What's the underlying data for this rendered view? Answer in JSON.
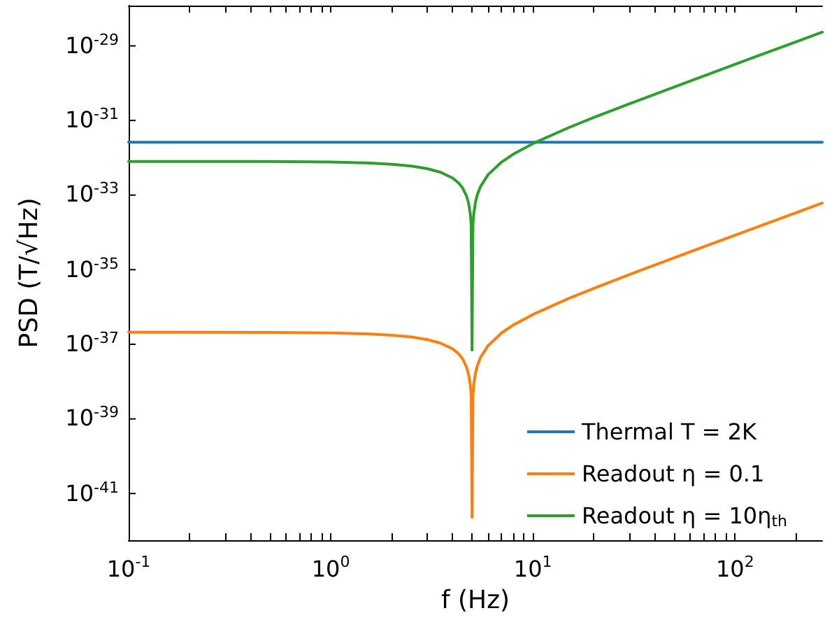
{
  "chart_data": {
    "type": "line",
    "xlabel": "f (Hz)",
    "ylabel": "PSD (T/√Hz)",
    "log": "xy",
    "grid": false,
    "legend": "bottom right",
    "marker": "none",
    "line_style": "solid",
    "xlim": [
      0.1,
      270
    ],
    "ylim": [
      5.6e-43,
      1.2e-28
    ],
    "xticks": [
      {
        "value": 0.1,
        "label": "10$^{-1}$"
      },
      {
        "value": 0.2,
        "label": null
      },
      {
        "value": 0.3,
        "label": null
      },
      {
        "value": 0.4,
        "label": null
      },
      {
        "value": 0.5,
        "label": null
      },
      {
        "value": 0.6,
        "label": null
      },
      {
        "value": 0.7,
        "label": null
      },
      {
        "value": 0.8,
        "label": null
      },
      {
        "value": 0.9,
        "label": null
      },
      {
        "value": 1,
        "label": "10$^{0}$"
      },
      {
        "value": 2,
        "label": null
      },
      {
        "value": 3,
        "label": null
      },
      {
        "value": 4,
        "label": null
      },
      {
        "value": 5,
        "label": null
      },
      {
        "value": 6,
        "label": null
      },
      {
        "value": 7,
        "label": null
      },
      {
        "value": 8,
        "label": null
      },
      {
        "value": 9,
        "label": null
      },
      {
        "value": 10,
        "label": "10$^{1}$"
      },
      {
        "value": 20,
        "label": null
      },
      {
        "value": 30,
        "label": null
      },
      {
        "value": 40,
        "label": null
      },
      {
        "value": 50,
        "label": null
      },
      {
        "value": 60,
        "label": null
      },
      {
        "value": 70,
        "label": null
      },
      {
        "value": 80,
        "label": null
      },
      {
        "value": 90,
        "label": null
      },
      {
        "value": 100,
        "label": "10$^{2}$"
      },
      {
        "value": 200,
        "label": null
      }
    ],
    "yticks": [
      {
        "value": 1e-41,
        "label": "10$^{-41}$"
      },
      {
        "value": 1e-39,
        "label": "10$^{-39}$"
      },
      {
        "value": 1e-37,
        "label": "10$^{-37}$"
      },
      {
        "value": 1e-35,
        "label": "10$^{-35}$"
      },
      {
        "value": 1e-33,
        "label": "10$^{-33}$"
      },
      {
        "value": 1e-31,
        "label": "10$^{-31}$"
      },
      {
        "value": 1e-29,
        "label": "10$^{-29}$"
      }
    ],
    "series": [
      {
        "name": "Thermal T = 2K",
        "color": "#1f77b4",
        "x": [
          0.1,
          270
        ],
        "values": [
          2.6e-32,
          2.6e-32
        ]
      },
      {
        "name": "Readout η = 0.1",
        "color": "#ff7f0e",
        "x": [
          0.1,
          0.2,
          0.5,
          1,
          1.5,
          2,
          2.5,
          3,
          3.5,
          4,
          4.3,
          4.5,
          4.7,
          4.8,
          4.9,
          4.95,
          5.0,
          5.05,
          5.1,
          5.2,
          5.3,
          5.5,
          6,
          7,
          8,
          10,
          15,
          20,
          30,
          50,
          70,
          100,
          150,
          200,
          270
        ],
        "values": [
          2.1e-37,
          2.1e-37,
          2.08e-37,
          2.02e-37,
          1.91e-37,
          1.76e-37,
          1.58e-37,
          1.34e-37,
          1.07e-37,
          7.6e-38,
          5.5e-38,
          4e-38,
          2.4e-38,
          1.6e-38,
          8.3e-39,
          4.2e-39,
          2.3e-42,
          4.2e-39,
          8.5e-39,
          1.7e-38,
          2.6e-38,
          4.4e-38,
          9.2e-38,
          2.02e-37,
          3.3e-37,
          6.3e-37,
          1.68e-36,
          3.15e-36,
          7.4e-36,
          2.08e-35,
          4.1e-35,
          8.4e-35,
          1.89e-34,
          3.36e-34,
          6.1e-34
        ]
      },
      {
        "name": "Readout η = 10η$_{th}$",
        "color": "#2ca02c",
        "x": [
          0.1,
          0.2,
          0.5,
          1,
          1.5,
          2,
          2.5,
          3,
          3.5,
          4,
          4.3,
          4.5,
          4.7,
          4.8,
          4.9,
          4.95,
          5.0,
          5.05,
          5.1,
          5.2,
          5.3,
          5.5,
          6,
          7,
          8,
          10,
          15,
          20,
          30,
          50,
          70,
          100,
          150,
          200,
          270
        ],
        "values": [
          8e-33,
          7.99e-33,
          7.92e-33,
          7.68e-33,
          7.28e-33,
          6.72e-33,
          6e-33,
          5.12e-33,
          4.08e-33,
          2.88e-33,
          2.08e-33,
          1.52e-33,
          9.3e-34,
          6.3e-34,
          3.2e-34,
          1.6e-34,
          7e-38,
          1.6e-34,
          3.2e-34,
          6.5e-34,
          9.9e-34,
          1.68e-33,
          3.52e-33,
          7.68e-33,
          1.25e-32,
          2.4e-32,
          6.4e-32,
          1.2e-31,
          2.8e-31,
          7.9e-31,
          1.56e-30,
          3.19e-30,
          7.2e-30,
          1.28e-29,
          2.33e-29
        ]
      }
    ]
  }
}
